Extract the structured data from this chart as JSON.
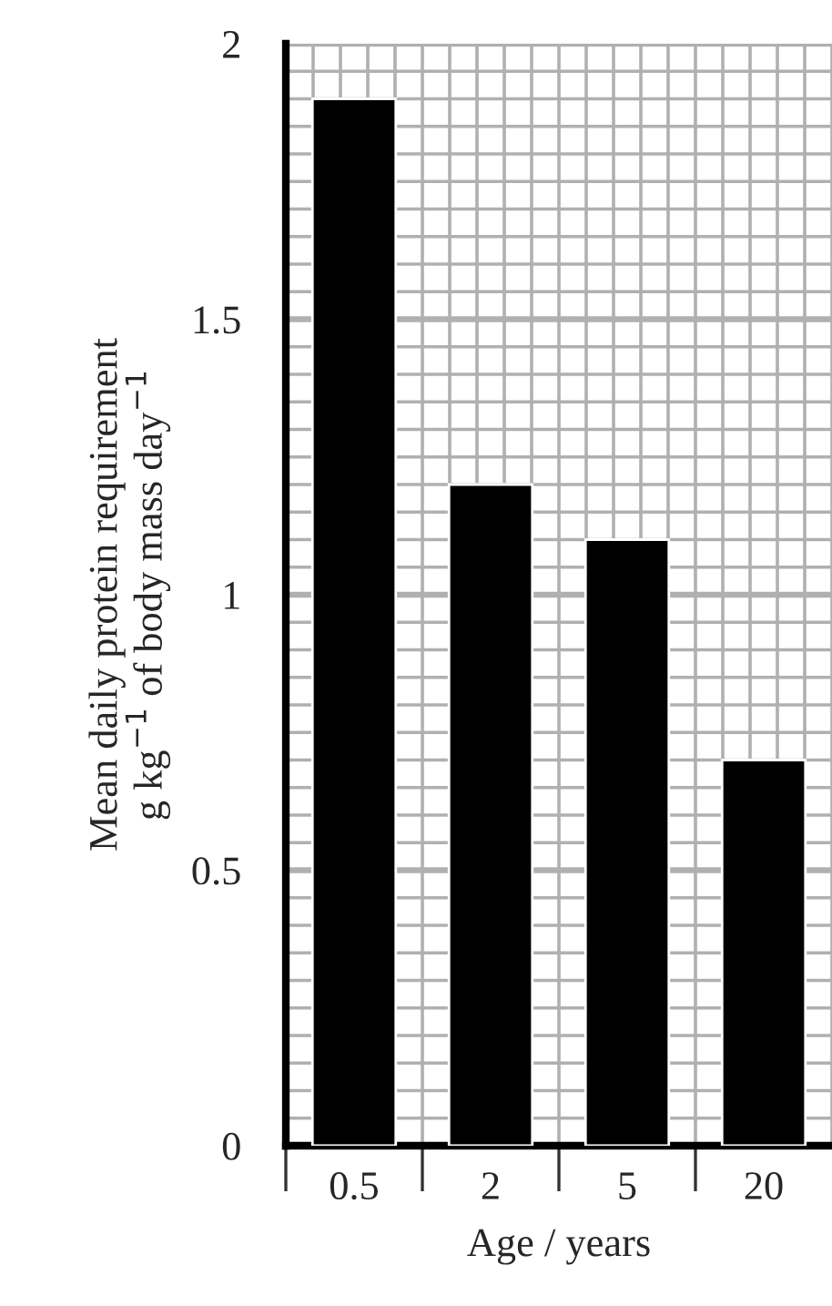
{
  "chart_data": {
    "type": "bar",
    "categories": [
      "0.5",
      "2",
      "5",
      "20"
    ],
    "values": [
      1.9,
      1.2,
      1.1,
      0.7
    ],
    "color": "#000000",
    "xlabel": "Age / years",
    "ylabel": "Mean daily protein requirement\ng kg$^{−1}$ of body mass day$^{−1}$",
    "ylim": [
      0,
      2
    ],
    "yticks": [
      0,
      0.5,
      1,
      1.5,
      2
    ],
    "grid": true
  }
}
